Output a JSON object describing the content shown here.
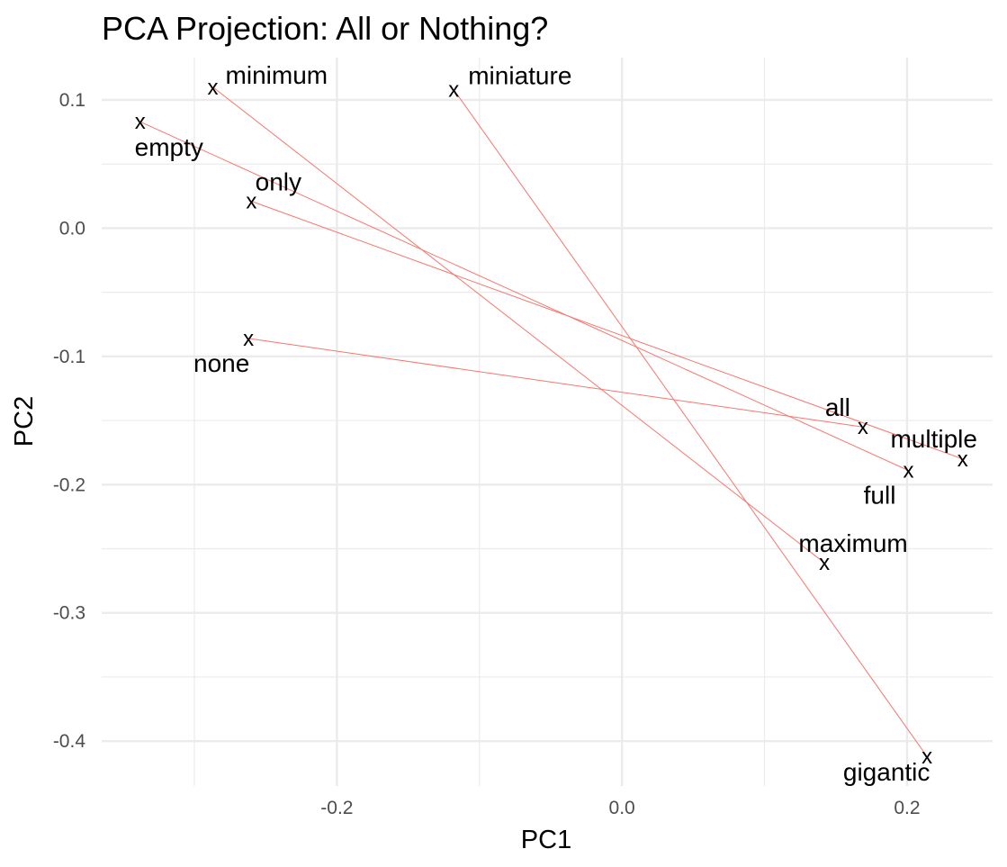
{
  "chart_data": {
    "type": "scatter",
    "title": "PCA Projection: All or Nothing?",
    "xlabel": "PC1",
    "ylabel": "PC2",
    "xlim": [
      -0.365,
      0.26
    ],
    "ylim": [
      -0.435,
      0.133
    ],
    "x_ticks": [
      -0.2,
      0.0,
      0.2
    ],
    "x_tick_labels": [
      "-0.2",
      "0.0",
      "0.2"
    ],
    "y_ticks": [
      0.1,
      0.0,
      -0.1,
      -0.2,
      -0.3,
      -0.4
    ],
    "y_tick_labels": [
      "0.1",
      "0.0",
      "-0.1",
      "-0.2",
      "-0.3",
      "-0.4"
    ],
    "grid": true,
    "marker": "x",
    "marker_color": "#000000",
    "line_color": "#f8766d",
    "points": [
      {
        "label": "minimum",
        "x": -0.287,
        "y": 0.11
      },
      {
        "label": "miniature",
        "x": -0.118,
        "y": 0.108
      },
      {
        "label": "empty",
        "x": -0.338,
        "y": 0.083
      },
      {
        "label": "only",
        "x": -0.26,
        "y": 0.021
      },
      {
        "label": "none",
        "x": -0.262,
        "y": -0.086
      },
      {
        "label": "all",
        "x": 0.169,
        "y": -0.155
      },
      {
        "label": "multiple",
        "x": 0.239,
        "y": -0.18
      },
      {
        "label": "full",
        "x": 0.201,
        "y": -0.189
      },
      {
        "label": "maximum",
        "x": 0.142,
        "y": -0.261
      },
      {
        "label": "gigantic",
        "x": 0.214,
        "y": -0.412
      }
    ],
    "pairs": [
      [
        "minimum",
        "maximum"
      ],
      [
        "miniature",
        "gigantic"
      ],
      [
        "empty",
        "full"
      ],
      [
        "only",
        "multiple"
      ],
      [
        "none",
        "all"
      ]
    ]
  }
}
